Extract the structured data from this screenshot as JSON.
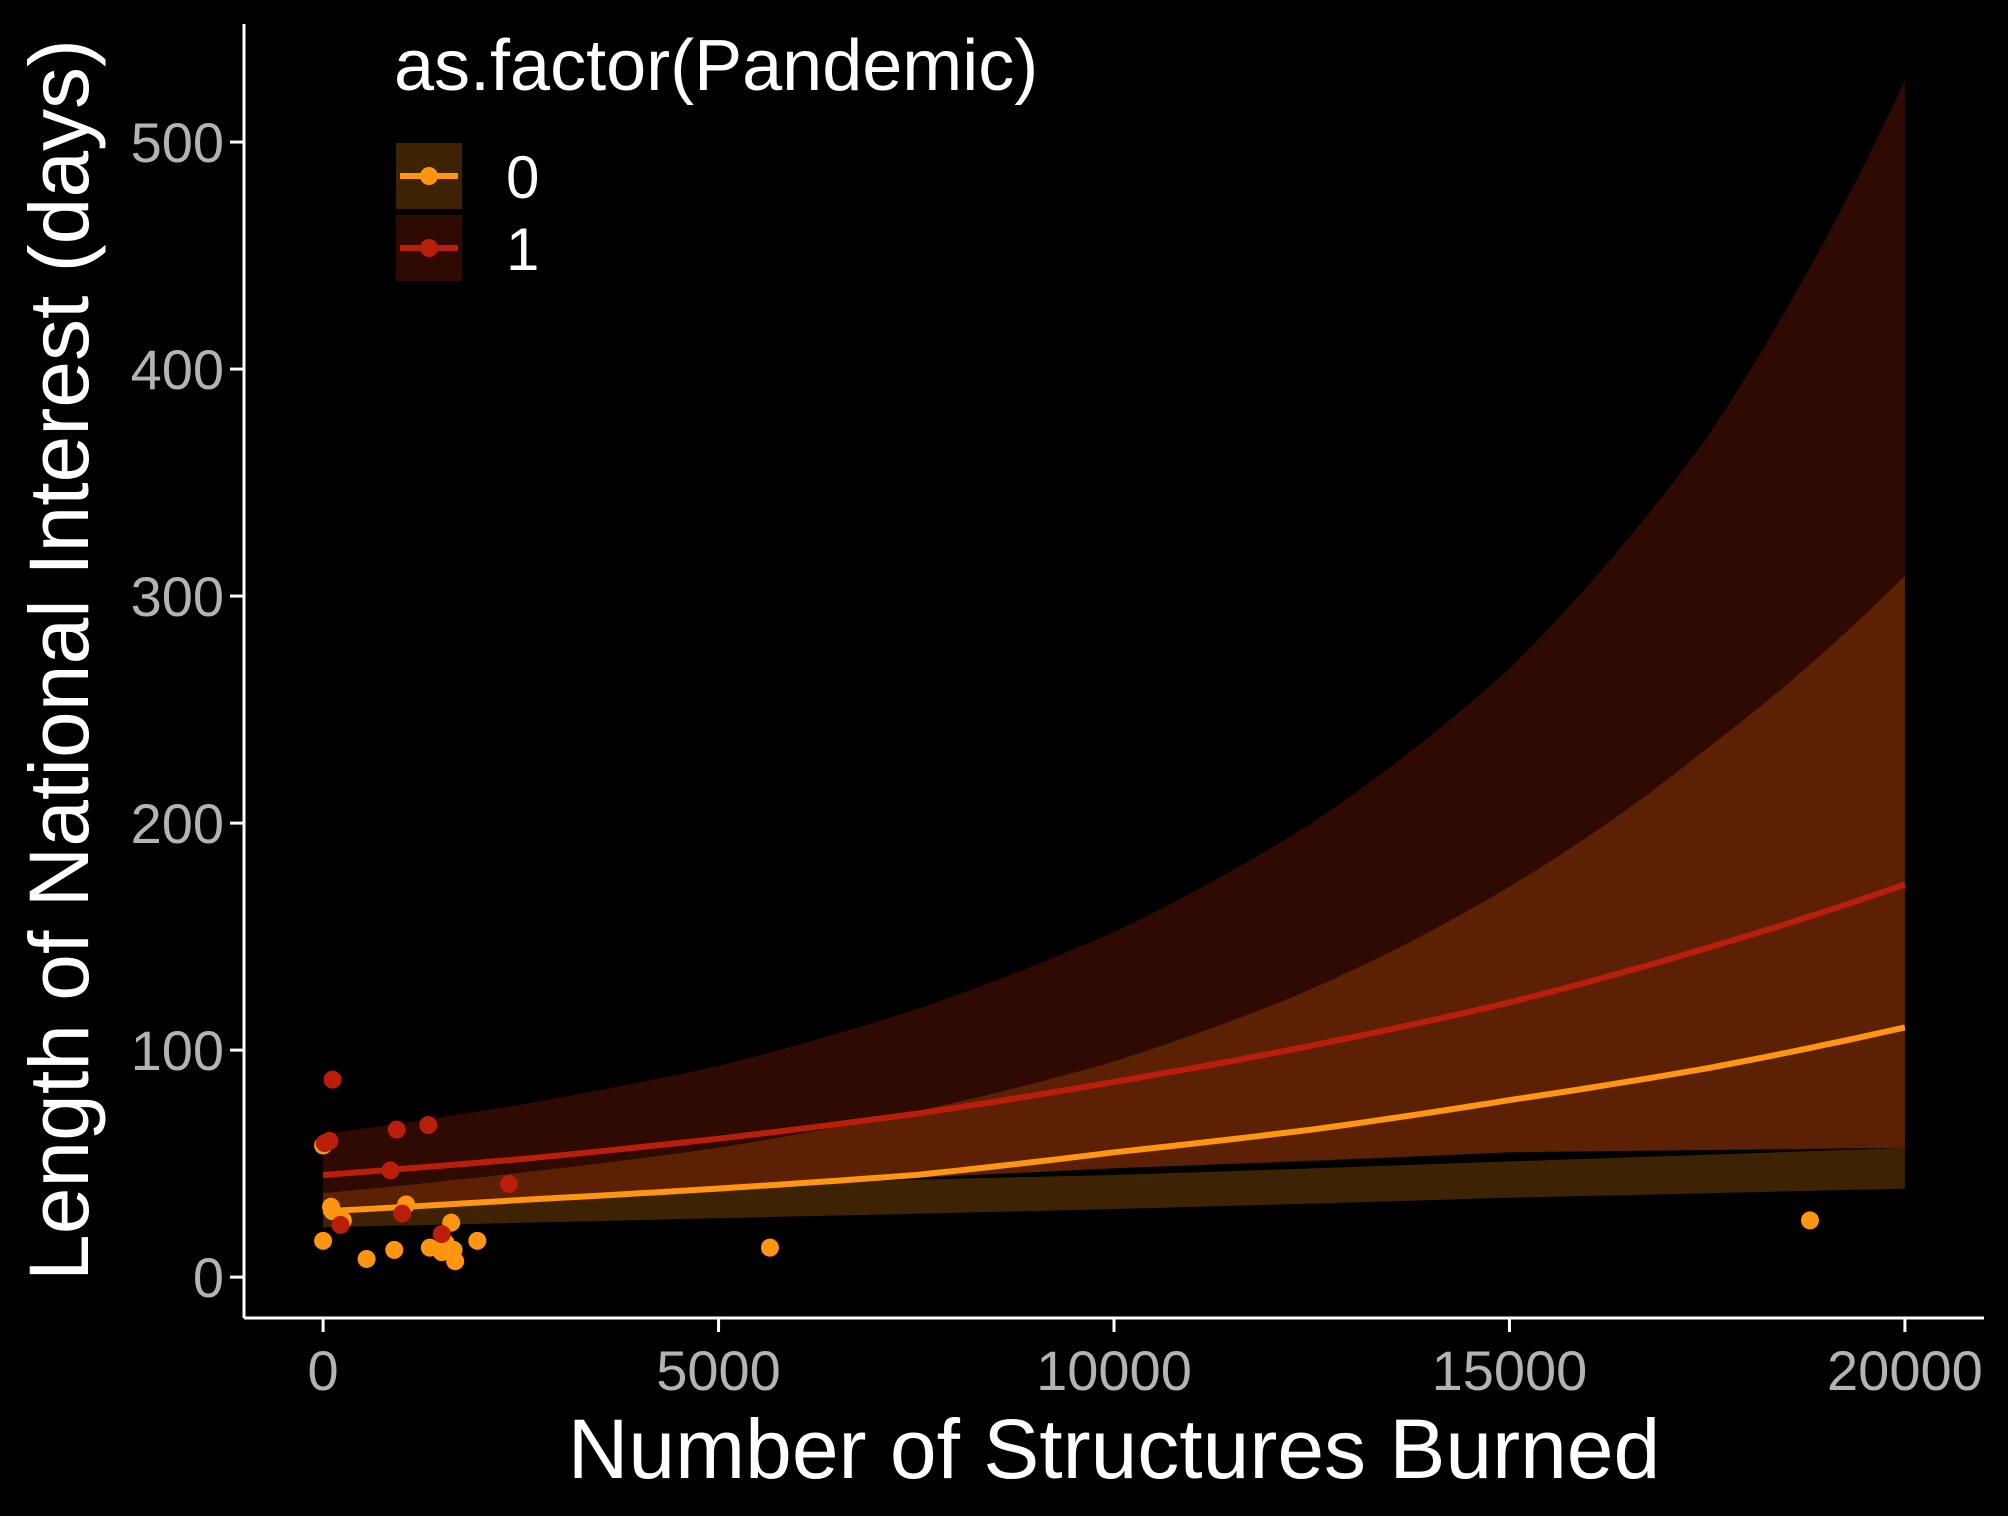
{
  "chart_data": {
    "type": "scatter",
    "title": "",
    "xlabel": "Number of Structures Burned",
    "ylabel": "Length of National Interest (days)",
    "xlim": [
      -1000,
      21000
    ],
    "ylim": [
      -18,
      552
    ],
    "x_ticks": [
      0,
      5000,
      10000,
      15000,
      20000
    ],
    "x_tick_labels": [
      "0",
      "5000",
      "10000",
      "15000",
      "20000"
    ],
    "y_ticks": [
      0,
      100,
      200,
      300,
      400,
      500
    ],
    "y_tick_labels": [
      "0",
      "100",
      "200",
      "300",
      "400",
      "500"
    ],
    "grid": false,
    "legend": {
      "title": "as.factor(Pandemic)",
      "placement": "top-left"
    },
    "series": [
      {
        "name": "0",
        "color": "#ff9510",
        "ribbon_color": "#3d2304",
        "points": [
          {
            "x": 0,
            "y": 58
          },
          {
            "x": 0,
            "y": 16
          },
          {
            "x": 100,
            "y": 31
          },
          {
            "x": 120,
            "y": 29
          },
          {
            "x": 250,
            "y": 25
          },
          {
            "x": 550,
            "y": 8
          },
          {
            "x": 900,
            "y": 12
          },
          {
            "x": 1050,
            "y": 32
          },
          {
            "x": 1350,
            "y": 13
          },
          {
            "x": 1500,
            "y": 11
          },
          {
            "x": 1550,
            "y": 15
          },
          {
            "x": 1620,
            "y": 24
          },
          {
            "x": 1650,
            "y": 12
          },
          {
            "x": 1670,
            "y": 7
          },
          {
            "x": 1950,
            "y": 16
          },
          {
            "x": 5650,
            "y": 13
          },
          {
            "x": 18800,
            "y": 25
          }
        ],
        "fit": [
          {
            "x": 0,
            "y": 29
          },
          {
            "x": 2500,
            "y": 34
          },
          {
            "x": 5000,
            "y": 39
          },
          {
            "x": 7500,
            "y": 45
          },
          {
            "x": 10000,
            "y": 55
          },
          {
            "x": 12500,
            "y": 65
          },
          {
            "x": 15000,
            "y": 78
          },
          {
            "x": 17500,
            "y": 92
          },
          {
            "x": 20000,
            "y": 110
          }
        ],
        "ci_lower": [
          {
            "x": 0,
            "y": 22
          },
          {
            "x": 5000,
            "y": 26
          },
          {
            "x": 10000,
            "y": 30
          },
          {
            "x": 15000,
            "y": 35
          },
          {
            "x": 20000,
            "y": 39
          }
        ],
        "ci_upper": [
          {
            "x": 0,
            "y": 37
          },
          {
            "x": 5000,
            "y": 41
          },
          {
            "x": 10000,
            "y": 45
          },
          {
            "x": 15000,
            "y": 51
          },
          {
            "x": 20000,
            "y": 57
          }
        ]
      },
      {
        "name": "1",
        "color": "#b81e0a",
        "ribbon_color": "#2e0a02",
        "points": [
          {
            "x": 20,
            "y": 59
          },
          {
            "x": 80,
            "y": 60
          },
          {
            "x": 120,
            "y": 87
          },
          {
            "x": 220,
            "y": 23
          },
          {
            "x": 850,
            "y": 47
          },
          {
            "x": 930,
            "y": 65
          },
          {
            "x": 1000,
            "y": 28
          },
          {
            "x": 1330,
            "y": 67
          },
          {
            "x": 1500,
            "y": 19
          },
          {
            "x": 2350,
            "y": 41
          }
        ],
        "fit": [
          {
            "x": 0,
            "y": 45
          },
          {
            "x": 2500,
            "y": 52
          },
          {
            "x": 5000,
            "y": 61
          },
          {
            "x": 7500,
            "y": 72
          },
          {
            "x": 10000,
            "y": 86
          },
          {
            "x": 12500,
            "y": 102
          },
          {
            "x": 15000,
            "y": 121
          },
          {
            "x": 17500,
            "y": 145
          },
          {
            "x": 20000,
            "y": 173
          }
        ],
        "ci_lower": [
          {
            "x": 0,
            "y": 31
          },
          {
            "x": 2500,
            "y": 36
          },
          {
            "x": 5000,
            "y": 40
          },
          {
            "x": 7500,
            "y": 44
          },
          {
            "x": 10000,
            "y": 48
          },
          {
            "x": 12500,
            "y": 51
          },
          {
            "x": 15000,
            "y": 55
          },
          {
            "x": 17500,
            "y": 58
          },
          {
            "x": 20000,
            "y": 57
          }
        ],
        "ci_upper": [
          {
            "x": 0,
            "y": 63
          },
          {
            "x": 2500,
            "y": 76
          },
          {
            "x": 5000,
            "y": 93
          },
          {
            "x": 7500,
            "y": 118
          },
          {
            "x": 10000,
            "y": 152
          },
          {
            "x": 12500,
            "y": 200
          },
          {
            "x": 15000,
            "y": 268
          },
          {
            "x": 17500,
            "y": 370
          },
          {
            "x": 20000,
            "y": 527
          }
        ]
      }
    ],
    "mid_band": {
      "color": "#5c2104",
      "lower": [
        {
          "x": 0,
          "y": 31
        },
        {
          "x": 5000,
          "y": 40
        },
        {
          "x": 10000,
          "y": 48
        },
        {
          "x": 15000,
          "y": 55
        },
        {
          "x": 20000,
          "y": 57
        }
      ],
      "upper": [
        {
          "x": 0,
          "y": 37
        },
        {
          "x": 2500,
          "y": 46
        },
        {
          "x": 5000,
          "y": 57
        },
        {
          "x": 7500,
          "y": 73
        },
        {
          "x": 10000,
          "y": 95
        },
        {
          "x": 12500,
          "y": 127
        },
        {
          "x": 15000,
          "y": 172
        },
        {
          "x": 17500,
          "y": 233
        },
        {
          "x": 20000,
          "y": 309
        }
      ]
    },
    "axis_color": "#ffffff"
  }
}
